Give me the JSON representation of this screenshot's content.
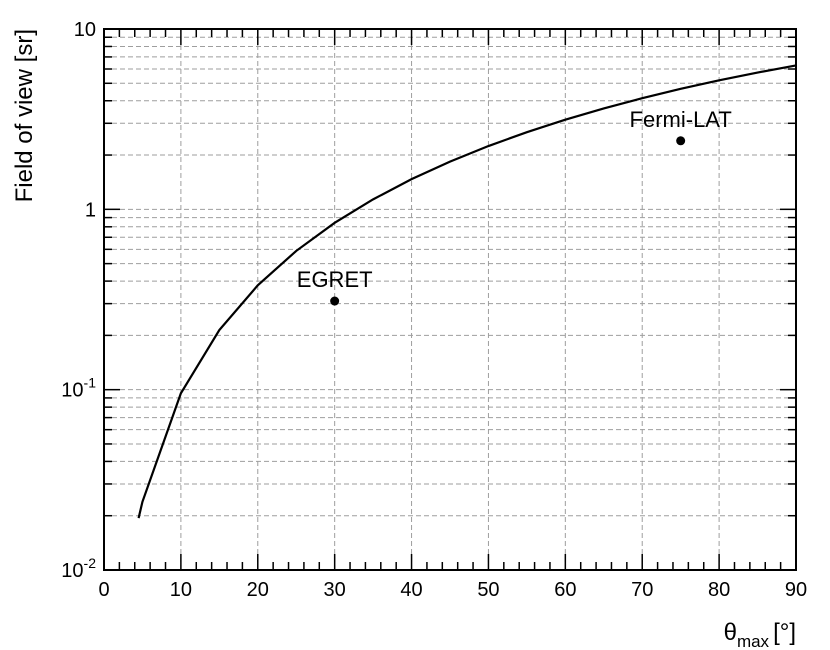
{
  "chart_data": {
    "type": "line",
    "title": "",
    "xlabel": "θ",
    "xlabel_subscript": "max",
    "xlabel_unit": "[°]",
    "ylabel": "Field of view [sr]",
    "x_scale": "linear",
    "y_scale": "log",
    "xlim": [
      0,
      90
    ],
    "ylim": [
      0.01,
      10
    ],
    "grid": true,
    "x_ticks": [
      0,
      10,
      20,
      30,
      40,
      50,
      60,
      70,
      80,
      90
    ],
    "x_tick_labels": [
      "0",
      "10",
      "20",
      "30",
      "40",
      "50",
      "60",
      "70",
      "80",
      "90"
    ],
    "y_ticks": [
      {
        "value": 0.01,
        "base": "10",
        "exp": "-2"
      },
      {
        "value": 0.1,
        "base": "10",
        "exp": "-1"
      },
      {
        "value": 1,
        "base": "1",
        "exp": ""
      },
      {
        "value": 10,
        "base": "10",
        "exp": ""
      }
    ],
    "series": [
      {
        "curve": "2π(1 − cos θ)",
        "x": [
          4.5,
          5,
          10,
          15,
          20,
          25,
          30,
          35,
          40,
          45,
          50,
          55,
          60,
          65,
          70,
          75,
          80,
          85,
          90
        ],
        "y": [
          0.0194,
          0.0239,
          0.0955,
          0.214,
          0.379,
          0.588,
          0.842,
          1.136,
          1.47,
          1.84,
          2.244,
          2.679,
          3.142,
          3.628,
          4.134,
          4.657,
          5.192,
          5.736,
          6.283
        ],
        "color": "#000000"
      }
    ],
    "points": [
      {
        "label": "EGRET",
        "x": 30,
        "y": 0.31
      },
      {
        "label": "Fermi-LAT",
        "x": 75,
        "y": 2.4
      }
    ]
  }
}
